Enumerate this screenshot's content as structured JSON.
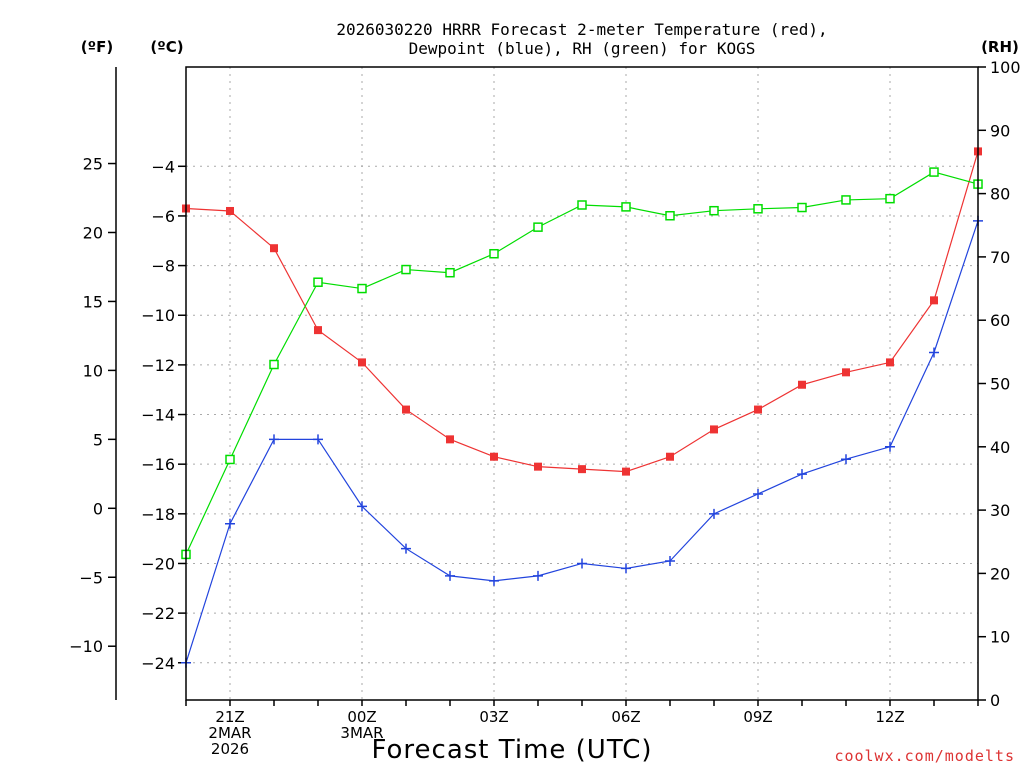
{
  "chart_data": {
    "type": "line",
    "title_line1": "2026030220 HRRR Forecast 2-meter Temperature (red),",
    "title_line2": "Dewpoint (blue), RH (green) for KOGS",
    "xlabel": "Forecast Time (UTC)",
    "credit": "coolwx.com/modelts",
    "left_outer_unit": "(ºF)",
    "left_inner_unit": "(ºC)",
    "right_unit": "(RH)",
    "colors": {
      "temperature": "#ee3333",
      "dewpoint": "#2244dd",
      "rh": "#00dd00",
      "credit": "#dd3333"
    },
    "forecast_hours": [
      20,
      21,
      22,
      23,
      24,
      25,
      26,
      27,
      28,
      29,
      30,
      31,
      32,
      33,
      34,
      35,
      36,
      37,
      38
    ],
    "x_ticks": [
      {
        "hour": 21,
        "lines": [
          "21Z",
          "2MAR",
          "2026"
        ]
      },
      {
        "hour": 24,
        "lines": [
          "00Z",
          "3MAR"
        ]
      },
      {
        "hour": 27,
        "lines": [
          "03Z"
        ]
      },
      {
        "hour": 30,
        "lines": [
          "06Z"
        ]
      },
      {
        "hour": 33,
        "lines": [
          "09Z"
        ]
      },
      {
        "hour": 36,
        "lines": [
          "12Z"
        ]
      }
    ],
    "celsius_range": [
      -25.5,
      0
    ],
    "celsius_ticks": [
      -24,
      -22,
      -20,
      -18,
      -16,
      -14,
      -12,
      -10,
      -8,
      -6,
      -4
    ],
    "fahrenheit_ticks": [
      -10,
      -5,
      0,
      5,
      10,
      15,
      20,
      25
    ],
    "rh_range": [
      0,
      100
    ],
    "rh_ticks": [
      0,
      10,
      20,
      30,
      40,
      50,
      60,
      70,
      80,
      90,
      100
    ],
    "series": [
      {
        "name": "2-meter Temperature",
        "unit": "C",
        "values": [
          -5.7,
          -5.8,
          -7.3,
          -10.6,
          -11.9,
          -13.8,
          -15.0,
          -15.7,
          -16.1,
          -16.2,
          -16.3,
          -15.7,
          -14.6,
          -13.8,
          -12.8,
          -12.3,
          -11.9,
          -9.4,
          -3.4
        ]
      },
      {
        "name": "Dewpoint",
        "unit": "C",
        "values": [
          -24.0,
          -18.4,
          -15.0,
          -15.0,
          -17.7,
          -19.4,
          -20.5,
          -20.7,
          -20.5,
          -20.0,
          -20.2,
          -19.9,
          -18.0,
          -17.2,
          -16.4,
          -15.8,
          -15.3,
          -11.5,
          -6.2
        ]
      },
      {
        "name": "RH",
        "unit": "%",
        "values": [
          23,
          38,
          53,
          66,
          65,
          68,
          67.5,
          70.5,
          74.7,
          78.2,
          77.9,
          76.5,
          77.3,
          77.6,
          77.8,
          79.0,
          79.2,
          83.4,
          81.5
        ]
      }
    ]
  }
}
